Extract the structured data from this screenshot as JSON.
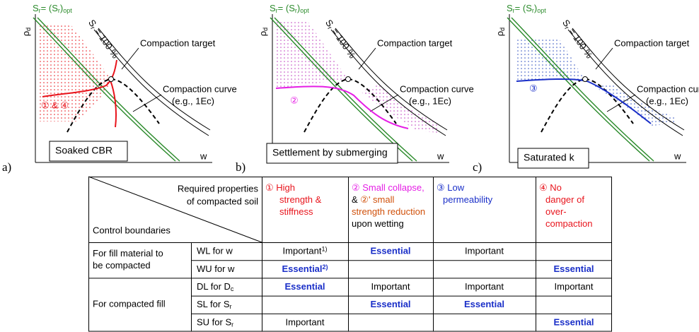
{
  "plot_labels": {
    "y_label": [
      "ρ",
      "d"
    ],
    "x_label": "w",
    "sr_opt": [
      "S",
      "r",
      "= (S",
      "r",
      ")",
      "opt"
    ],
    "sr_100": [
      "S",
      "r",
      " = 100 %"
    ],
    "target": "Compaction target",
    "curve": [
      "Compaction curve",
      "(e.g., 1Ec)"
    ]
  },
  "panels": [
    {
      "letter": "a)",
      "box": "Soaked CBR",
      "annotation": "① & ④",
      "color": "#e8141c"
    },
    {
      "letter": "b)",
      "box": "Settlement by submerging",
      "annotation": "②",
      "color": "#e51ee5"
    },
    {
      "letter": "c)",
      "box": "Saturated k",
      "annotation": "③",
      "color": "#1a2fc8"
    }
  ],
  "table": {
    "corner_top": [
      "Required properties",
      "of compacted soil"
    ],
    "corner_bottom": "Control boundaries",
    "columns": [
      {
        "lines": [
          [
            {
              "text": "① High",
              "color": "#e8141c"
            }
          ],
          [
            {
              "text": "strength &",
              "color": "#e8141c"
            }
          ],
          [
            {
              "text": "stiffness",
              "color": "#e8141c"
            }
          ]
        ]
      },
      {
        "lines": [
          [
            {
              "text": "② Small collapse,",
              "color": "#e51ee5"
            }
          ],
          [
            {
              "text": "& ",
              "color": "#000000"
            },
            {
              "text": "②' small",
              "color": "#d0500a"
            }
          ],
          [
            {
              "text": "strength reduction",
              "color": "#d0500a"
            }
          ],
          [
            {
              "text": "upon wetting",
              "color": "#000000"
            }
          ]
        ]
      },
      {
        "lines": [
          [
            {
              "text": "③ Low",
              "color": "#1a2fc8"
            }
          ],
          [
            {
              "text": "permeability",
              "color": "#1a2fc8"
            }
          ]
        ]
      },
      {
        "lines": [
          [
            {
              "text": "④ No",
              "color": "#e8141c"
            }
          ],
          [
            {
              "text": "danger of",
              "color": "#e8141c"
            }
          ],
          [
            {
              "text": "over-",
              "color": "#e8141c"
            }
          ],
          [
            {
              "text": "compaction",
              "color": "#e8141c"
            }
          ]
        ]
      }
    ],
    "groups": [
      {
        "label": [
          "For fill material to",
          "be compacted"
        ],
        "rows": [
          {
            "boundary": [
              "WL for w"
            ],
            "cells": [
              {
                "text": "Important",
                "note": "1)"
              },
              {
                "text": "Essential",
                "emphasis": true
              },
              {
                "text": "Important"
              },
              null
            ]
          },
          {
            "boundary": [
              "WU for w"
            ],
            "cells": [
              {
                "text": "Essential",
                "note": "2)",
                "emphasis": true
              },
              null,
              null,
              {
                "text": "Essential",
                "emphasis": true
              }
            ]
          }
        ]
      },
      {
        "label": [
          "For compacted fill"
        ],
        "rows": [
          {
            "boundary": [
              "DL for D",
              "c"
            ],
            "cells": [
              {
                "text": "Essential",
                "emphasis": true
              },
              {
                "text": "Important"
              },
              {
                "text": "Important"
              },
              {
                "text": "Important"
              }
            ]
          },
          {
            "boundary": [
              "SL for S",
              "r"
            ],
            "cells": [
              null,
              {
                "text": "Essential",
                "emphasis": true
              },
              {
                "text": "Essential",
                "emphasis": true
              },
              null
            ]
          },
          {
            "boundary": [
              "SU for S",
              "r"
            ],
            "cells": [
              {
                "text": "Important"
              },
              null,
              null,
              {
                "text": "Essential",
                "emphasis": true
              }
            ]
          }
        ]
      }
    ]
  }
}
